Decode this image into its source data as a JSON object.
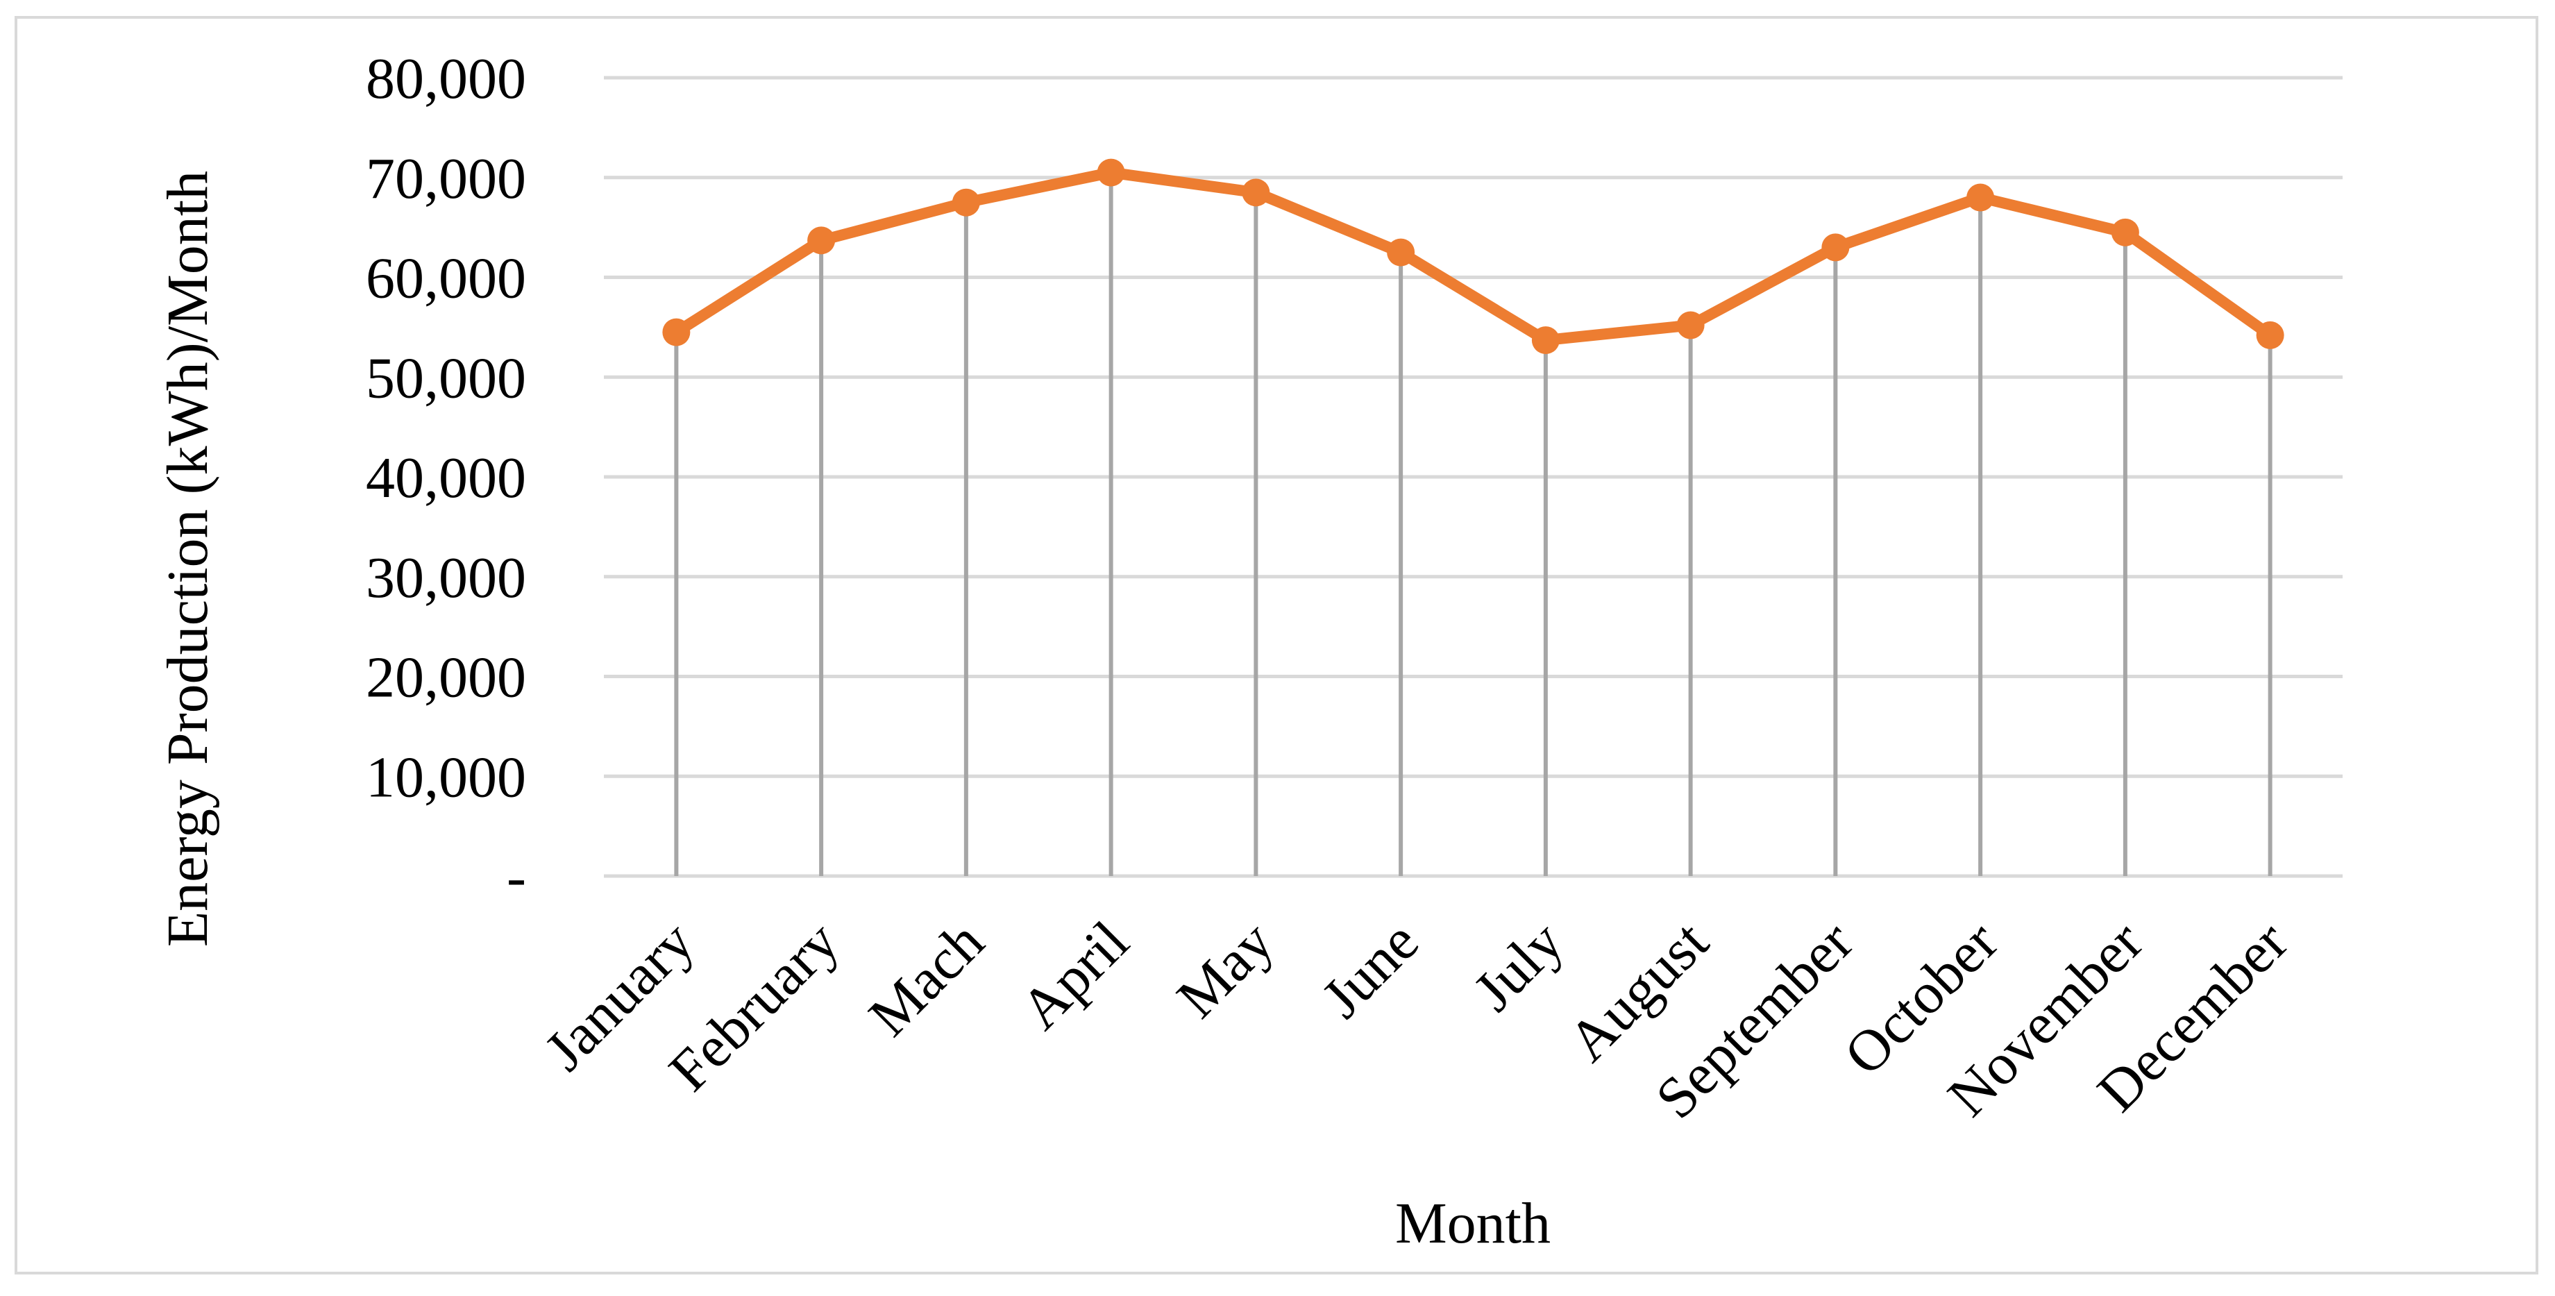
{
  "chart_data": {
    "type": "line",
    "xlabel": "Month",
    "ylabel": "Energy Production (kWh)/Month",
    "categories": [
      "January",
      "February",
      "Mach",
      "April",
      "May",
      "June",
      "July",
      "August",
      "September",
      "October",
      "November",
      "December"
    ],
    "series": [
      {
        "values": [
          54500,
          63700,
          67500,
          70500,
          68500,
          62500,
          53700,
          55200,
          63000,
          68000,
          64500,
          54200
        ]
      }
    ],
    "ylim": [
      0,
      80000
    ],
    "yticks": [
      0,
      10000,
      20000,
      30000,
      40000,
      50000,
      60000,
      70000,
      80000
    ],
    "ytick_labels": [
      "-",
      "10,000",
      "20,000",
      "30,000",
      "40,000",
      "50,000",
      "60,000",
      "70,000",
      "80,000"
    ],
    "grid": true,
    "drop_lines": true,
    "legend": "none",
    "colors": {
      "line": "#ed7d31",
      "grid": "#d9d9d9",
      "drop_line": "#a6a6a6"
    }
  }
}
